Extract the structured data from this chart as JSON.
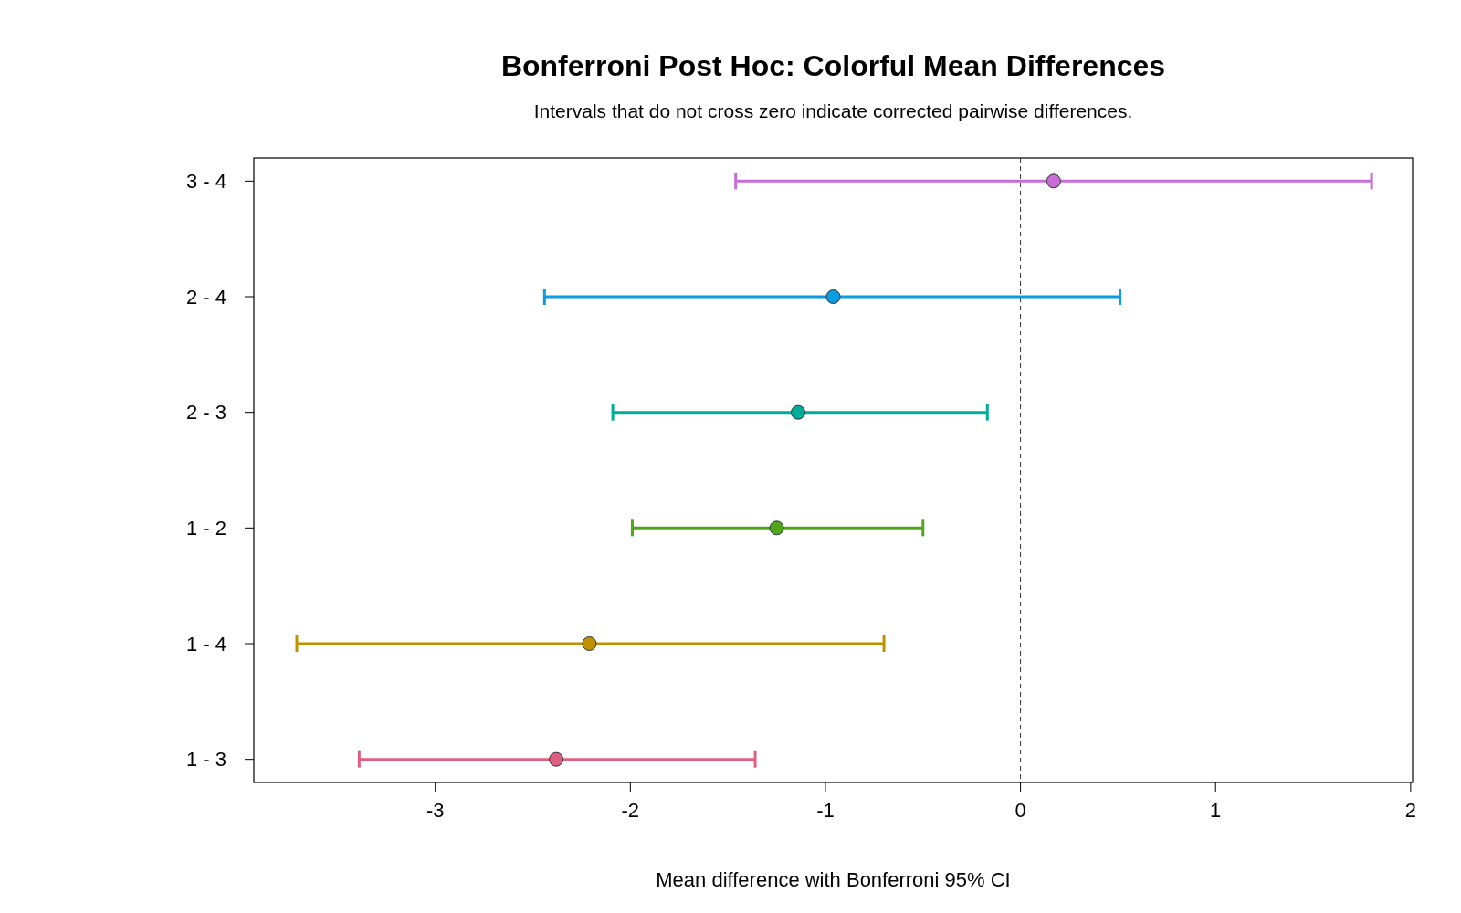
{
  "chart_data": {
    "type": "scatter",
    "orientation": "horizontal",
    "title": "Bonferroni Post Hoc: Colorful Mean Differences",
    "subtitle": "Intervals that do not cross zero indicate corrected pairwise differences.",
    "xlabel": "Mean difference with Bonferroni 95% CI",
    "categories": [
      "3 - 4",
      "2 - 4",
      "2 - 3",
      "1 - 2",
      "1 - 4",
      "1 - 3"
    ],
    "values": [
      0.17,
      -0.96,
      -1.14,
      -1.25,
      -2.21,
      -2.38
    ],
    "errors": [
      [
        -1.46,
        1.8
      ],
      [
        -2.44,
        0.51
      ],
      [
        -2.09,
        -0.17
      ],
      [
        -1.99,
        -0.5
      ],
      [
        -3.71,
        -0.7
      ],
      [
        -3.39,
        -1.36
      ]
    ],
    "colors": [
      "#c86dd7",
      "#0b9be0",
      "#00ad9a",
      "#4fa61a",
      "#c09000",
      "#df5f80"
    ],
    "xlim": [
      -3.93,
      2.01
    ],
    "xticks": [
      -3,
      -2,
      -1,
      0,
      1,
      2
    ],
    "ref_lines": [
      {
        "axis": "x",
        "value": 0,
        "color": "#333333",
        "line_style": "dashed"
      }
    ],
    "marker": "circle",
    "grid": false
  }
}
